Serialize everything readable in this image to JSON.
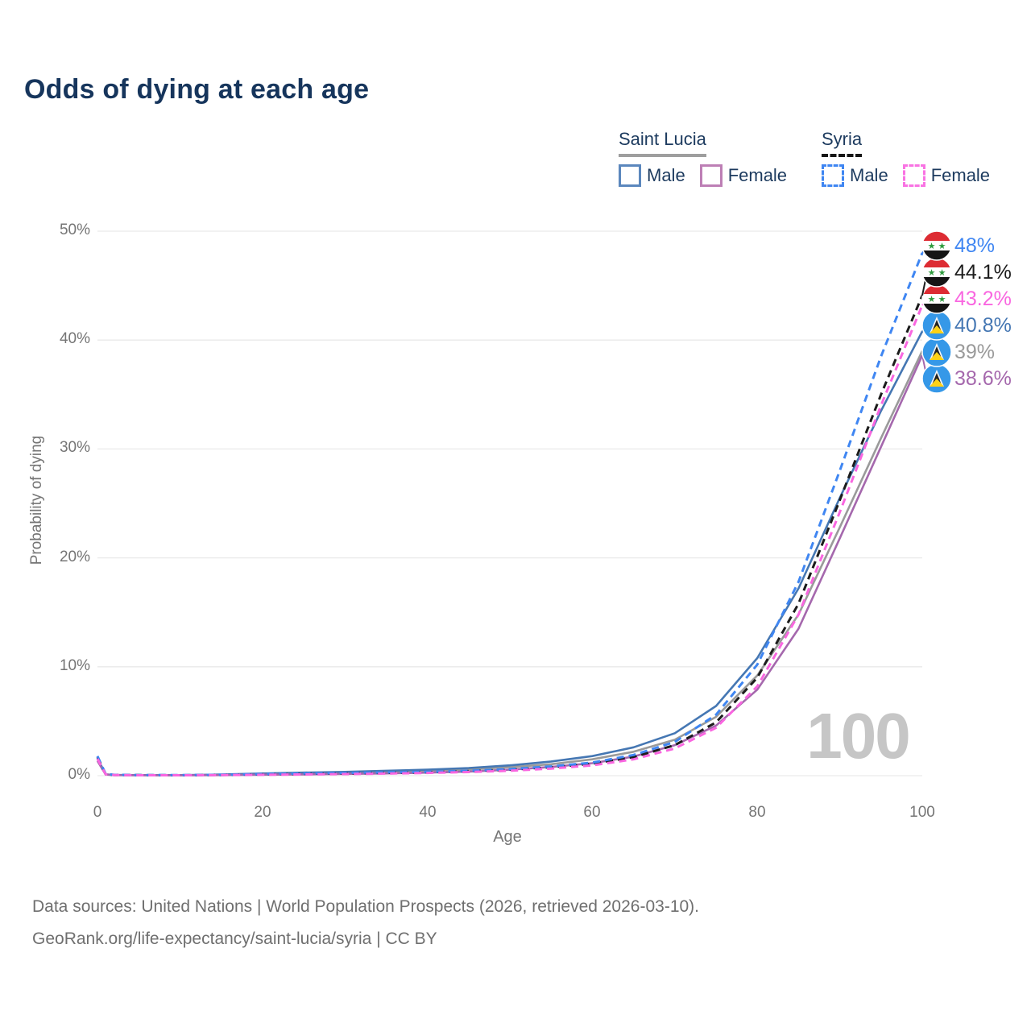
{
  "title": "Odds of dying at each age",
  "legend": {
    "groups": [
      {
        "name": "Saint Lucia",
        "line_style": "solid",
        "underline_color": "#9e9e9e",
        "items": [
          {
            "label": "Male",
            "color": "#4a79b6"
          },
          {
            "label": "Female",
            "color": "#b272af"
          }
        ]
      },
      {
        "name": "Syria",
        "line_style": "dashed",
        "underline_color": "#161616",
        "items": [
          {
            "label": "Male",
            "color": "#3f86f2"
          },
          {
            "label": "Female",
            "color": "#f973e3"
          }
        ]
      }
    ]
  },
  "axes": {
    "y": {
      "title": "Probability of dying",
      "ticks": [
        "0%",
        "10%",
        "20%",
        "30%",
        "40%",
        "50%"
      ],
      "range_pct": [
        0,
        50
      ],
      "grid": true
    },
    "x": {
      "title": "Age",
      "ticks": [
        "0",
        "20",
        "40",
        "60",
        "80",
        "100"
      ],
      "range_years": [
        0,
        100
      ]
    }
  },
  "hover_age_indicator": "100",
  "chart_data": {
    "type": "line",
    "x_label": "Age",
    "y_label": "Probability of dying",
    "x_range": [
      0,
      100
    ],
    "y_range_pct": [
      0,
      50
    ],
    "legend_position": "top-right",
    "grid": "horizontal-only",
    "ages": [
      0,
      1,
      2,
      5,
      10,
      15,
      20,
      25,
      30,
      35,
      40,
      45,
      50,
      55,
      60,
      65,
      70,
      75,
      80,
      85,
      90,
      95,
      100
    ],
    "series": [
      {
        "name": "Syria Male",
        "country": "Syria",
        "sex": "Male",
        "dashed": true,
        "color": "#3f86f2",
        "flag": "syria",
        "end_label": "48%",
        "end_value_pct": 48.0,
        "values_pct": [
          1.8,
          0.15,
          0.08,
          0.05,
          0.05,
          0.08,
          0.15,
          0.2,
          0.25,
          0.3,
          0.35,
          0.45,
          0.6,
          0.85,
          1.2,
          1.9,
          3.1,
          5.6,
          10.2,
          17.8,
          28.0,
          38.5,
          48.0
        ]
      },
      {
        "name": "Syria Total",
        "country": "Syria",
        "sex": "Total",
        "dashed": true,
        "color": "#1c1c1c",
        "flag": "syria",
        "end_label": "44.1%",
        "end_value_pct": 44.1,
        "values_pct": [
          1.7,
          0.13,
          0.07,
          0.05,
          0.04,
          0.07,
          0.13,
          0.17,
          0.21,
          0.26,
          0.32,
          0.42,
          0.55,
          0.78,
          1.1,
          1.7,
          2.8,
          4.9,
          9.0,
          15.8,
          25.3,
          35.0,
          44.1
        ]
      },
      {
        "name": "Syria Female",
        "country": "Syria",
        "sex": "Female",
        "dashed": true,
        "color": "#f966e0",
        "flag": "syria",
        "end_label": "43.2%",
        "end_value_pct": 43.2,
        "values_pct": [
          1.55,
          0.12,
          0.06,
          0.04,
          0.035,
          0.05,
          0.08,
          0.11,
          0.15,
          0.19,
          0.25,
          0.33,
          0.45,
          0.65,
          0.95,
          1.5,
          2.5,
          4.4,
          8.2,
          14.8,
          24.2,
          34.0,
          43.2
        ]
      },
      {
        "name": "Saint Lucia Male",
        "country": "Saint Lucia",
        "sex": "Male",
        "dashed": false,
        "color": "#4577b3",
        "flag": "saint-lucia",
        "end_label": "40.8%",
        "end_value_pct": 40.8,
        "values_pct": [
          1.6,
          0.12,
          0.07,
          0.05,
          0.05,
          0.1,
          0.2,
          0.28,
          0.35,
          0.45,
          0.55,
          0.7,
          0.95,
          1.3,
          1.8,
          2.6,
          3.9,
          6.4,
          10.8,
          17.2,
          25.5,
          33.5,
          40.8
        ]
      },
      {
        "name": "Saint Lucia Total",
        "country": "Saint Lucia",
        "sex": "Total",
        "dashed": false,
        "color": "#9a9a9a",
        "flag": "saint-lucia",
        "end_label": "39%",
        "end_value_pct": 39.0,
        "values_pct": [
          1.5,
          0.11,
          0.06,
          0.04,
          0.04,
          0.08,
          0.15,
          0.2,
          0.27,
          0.35,
          0.44,
          0.57,
          0.78,
          1.05,
          1.5,
          2.2,
          3.3,
          5.4,
          9.2,
          14.8,
          22.8,
          31.0,
          39.0
        ]
      },
      {
        "name": "Saint Lucia Female",
        "country": "Saint Lucia",
        "sex": "Female",
        "dashed": false,
        "color": "#a568ad",
        "flag": "saint-lucia",
        "end_label": "38.6%",
        "end_value_pct": 38.6,
        "values_pct": [
          1.35,
          0.1,
          0.05,
          0.035,
          0.03,
          0.05,
          0.09,
          0.12,
          0.16,
          0.21,
          0.28,
          0.38,
          0.55,
          0.8,
          1.15,
          1.75,
          2.8,
          4.6,
          7.9,
          13.5,
          21.8,
          30.2,
          38.6
        ]
      }
    ]
  },
  "flag_colors": {
    "syria_red": "#dd2c33",
    "syria_white": "#ffffff",
    "syria_black": "#151515",
    "syria_star_green": "#2e9b3e",
    "saintlucia_blue": "#3598e8",
    "saintlucia_white": "#f5f5f5",
    "saintlucia_black": "#222222",
    "saintlucia_yellow": "#fdd116"
  },
  "footer": {
    "line1": "Data sources: United Nations | World Population Prospects (2026, retrieved 2026-03-10).",
    "line2": "GeoRank.org/life-expectancy/saint-lucia/syria | CC BY"
  }
}
